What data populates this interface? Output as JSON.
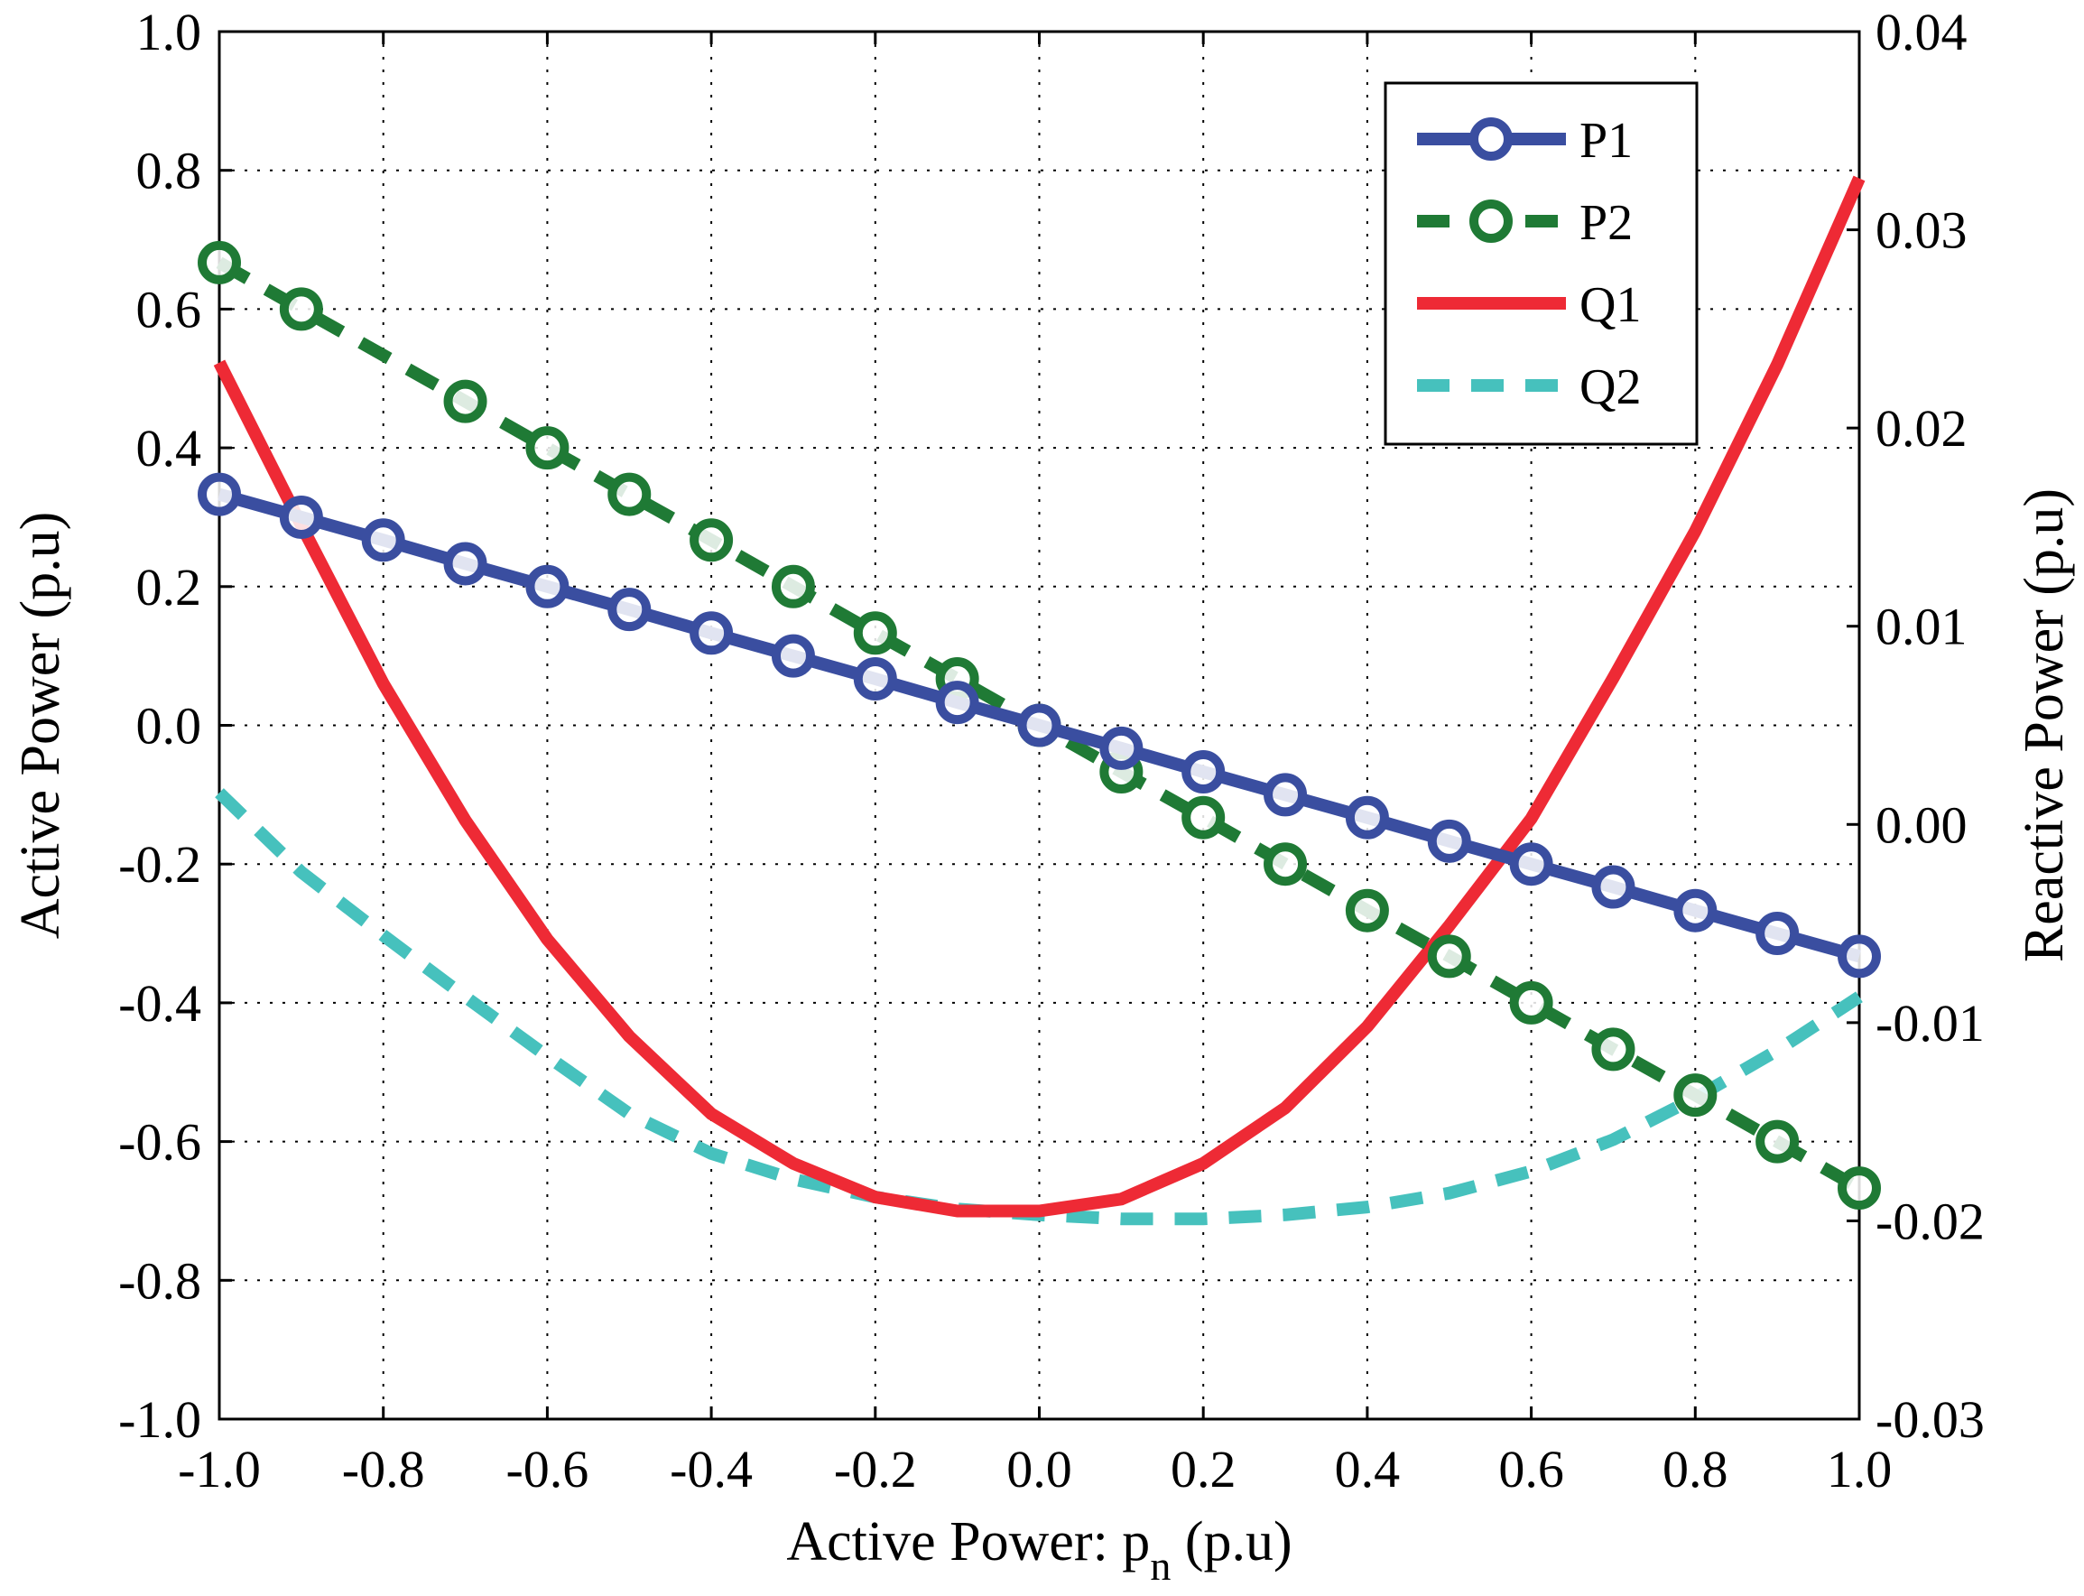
{
  "chart_data": {
    "type": "line",
    "title": "",
    "xlabel": "Active Power: p",
    "xlabel_subscript": "n",
    "xlabel_unit": " (p.u)",
    "ylabel": "Active Power (p.u)",
    "y2label": "Reactive Power (p.u)",
    "xlim": [
      -1.0,
      1.0
    ],
    "ylim": [
      -1.0,
      1.0
    ],
    "y2lim": [
      -0.03,
      0.04
    ],
    "grid": true,
    "legend_position": "top-right",
    "x_ticks": [
      -1.0,
      -0.8,
      -0.6,
      -0.4,
      -0.2,
      0.0,
      0.2,
      0.4,
      0.6,
      0.8,
      1.0
    ],
    "x_tick_labels": [
      "-1.0",
      "-0.8",
      "-0.6",
      "-0.4",
      "-0.2",
      "0.0",
      "0.2",
      "0.4",
      "0.6",
      "0.8",
      "1.0"
    ],
    "y_ticks": [
      -1.0,
      -0.8,
      -0.6,
      -0.4,
      -0.2,
      0.0,
      0.2,
      0.4,
      0.6,
      0.8,
      1.0
    ],
    "y_tick_labels": [
      "-1.0",
      "-0.8",
      "-0.6",
      "-0.4",
      "-0.2",
      "0.0",
      "0.2",
      "0.4",
      "0.6",
      "0.8",
      "1.0"
    ],
    "y2_ticks": [
      -0.03,
      -0.02,
      -0.01,
      0.0,
      0.01,
      0.02,
      0.03,
      0.04
    ],
    "y2_tick_labels": [
      "-0.03",
      "-0.02",
      "-0.01",
      "0.00",
      "0.01",
      "0.02",
      "0.03",
      "0.04"
    ],
    "series": [
      {
        "name": "P1",
        "axis": "left",
        "color": "#3a4ea0",
        "style": "solid",
        "marker": "circle",
        "x": [
          -1.0,
          -0.9,
          -0.8,
          -0.7,
          -0.6,
          -0.5,
          -0.4,
          -0.3,
          -0.2,
          -0.1,
          0.0,
          0.1,
          0.2,
          0.3,
          0.4,
          0.5,
          0.6,
          0.7,
          0.8,
          0.9,
          1.0
        ],
        "y": [
          0.333,
          0.3,
          0.267,
          0.233,
          0.2,
          0.167,
          0.133,
          0.1,
          0.067,
          0.033,
          0.0,
          -0.033,
          -0.067,
          -0.1,
          -0.133,
          -0.167,
          -0.2,
          -0.233,
          -0.267,
          -0.3,
          -0.333
        ]
      },
      {
        "name": "P2",
        "axis": "left",
        "color": "#1f7a35",
        "style": "dashed",
        "marker": "circle",
        "x": [
          -1.0,
          -0.9,
          -0.7,
          -0.6,
          -0.5,
          -0.4,
          -0.3,
          -0.2,
          -0.1,
          0.0,
          0.1,
          0.2,
          0.3,
          0.4,
          0.5,
          0.6,
          0.7,
          0.8,
          0.9,
          1.0
        ],
        "y": [
          0.667,
          0.6,
          0.467,
          0.4,
          0.333,
          0.267,
          0.2,
          0.133,
          0.067,
          0.0,
          -0.067,
          -0.133,
          -0.2,
          -0.267,
          -0.333,
          -0.4,
          -0.467,
          -0.533,
          -0.6,
          -0.667
        ]
      },
      {
        "name": "Q1",
        "axis": "right",
        "color": "#ee2a35",
        "style": "solid",
        "marker": "none",
        "x": [
          -1.0,
          -0.9,
          -0.8,
          -0.7,
          -0.6,
          -0.5,
          -0.4,
          -0.3,
          -0.2,
          -0.1,
          0.0,
          0.1,
          0.2,
          0.3,
          0.4,
          0.5,
          0.6,
          0.7,
          0.8,
          0.9,
          1.0
        ],
        "y": [
          0.0233,
          0.0151,
          0.0071,
          0.0002,
          -0.0058,
          -0.0107,
          -0.0146,
          -0.0171,
          -0.0188,
          -0.0195,
          -0.0195,
          -0.0189,
          -0.0171,
          -0.0143,
          -0.0102,
          -0.0051,
          0.0003,
          0.0074,
          0.0148,
          0.0232,
          0.0326
        ]
      },
      {
        "name": "Q2",
        "axis": "right",
        "color": "#46c1bd",
        "style": "dashed",
        "marker": "none",
        "x": [
          -1.0,
          -0.9,
          -0.8,
          -0.7,
          -0.6,
          -0.5,
          -0.4,
          -0.3,
          -0.2,
          -0.1,
          0.0,
          0.1,
          0.2,
          0.3,
          0.4,
          0.5,
          0.6,
          0.7,
          0.8,
          0.9,
          1.0
        ],
        "y": [
          0.0016,
          -0.0024,
          -0.0056,
          -0.0087,
          -0.0117,
          -0.0146,
          -0.0166,
          -0.0179,
          -0.0188,
          -0.0194,
          -0.0197,
          -0.0199,
          -0.0199,
          -0.0197,
          -0.0193,
          -0.0186,
          -0.0175,
          -0.0159,
          -0.0138,
          -0.0114,
          -0.0087
        ]
      }
    ]
  }
}
